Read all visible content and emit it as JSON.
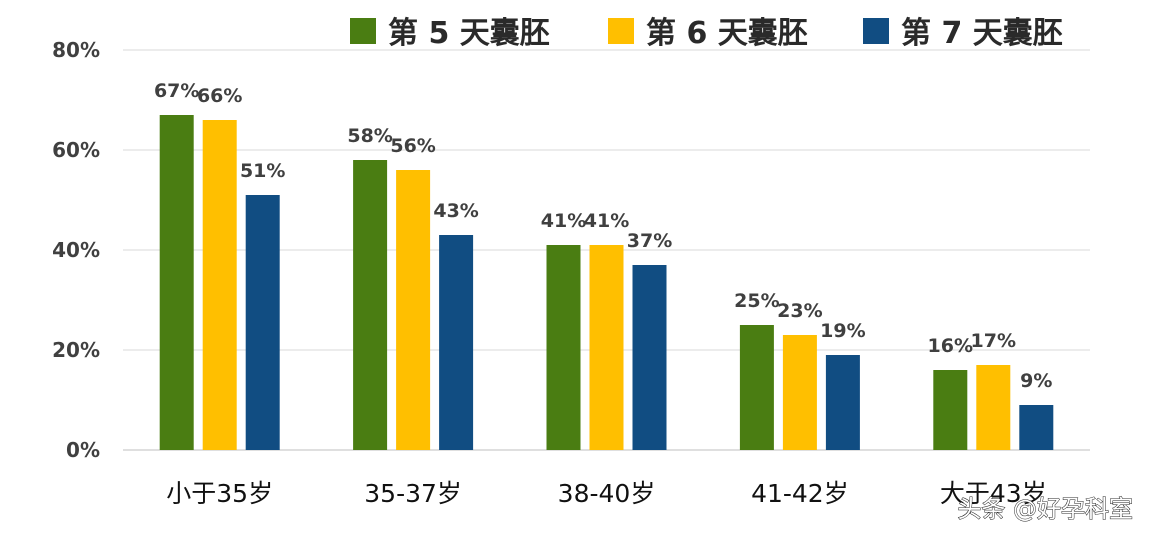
{
  "chart_data": {
    "type": "bar",
    "title": "",
    "xlabel": "",
    "ylabel": "",
    "ylim": [
      0,
      0.8
    ],
    "yticks": [
      {
        "value": 0,
        "label": "0%"
      },
      {
        "value": 0.2,
        "label": "20%"
      },
      {
        "value": 0.4,
        "label": "40%"
      },
      {
        "value": 0.6,
        "label": "60%"
      },
      {
        "value": 0.8,
        "label": "80%"
      }
    ],
    "grid": true,
    "legend_position": "top",
    "categories": [
      "小于35岁",
      "35-37岁",
      "38-40岁",
      "41-42岁",
      "大于43岁"
    ],
    "series": [
      {
        "name": "第 5 天囊胚",
        "color": "#4a7d12",
        "values": [
          0.67,
          0.58,
          0.41,
          0.25,
          0.16
        ],
        "labels": [
          "67%",
          "58%",
          "41%",
          "25%",
          "16%"
        ]
      },
      {
        "name": "第 6 天囊胚",
        "color": "#ffbf00",
        "values": [
          0.66,
          0.56,
          0.41,
          0.23,
          0.17
        ],
        "labels": [
          "66%",
          "56%",
          "41%",
          "23%",
          "17%"
        ]
      },
      {
        "name": "第 7 天囊胚",
        "color": "#114d82",
        "values": [
          0.51,
          0.43,
          0.37,
          0.19,
          0.09
        ],
        "labels": [
          "51%",
          "43%",
          "37%",
          "19%",
          "9%"
        ]
      }
    ]
  },
  "watermark": "头条 @好孕科室"
}
